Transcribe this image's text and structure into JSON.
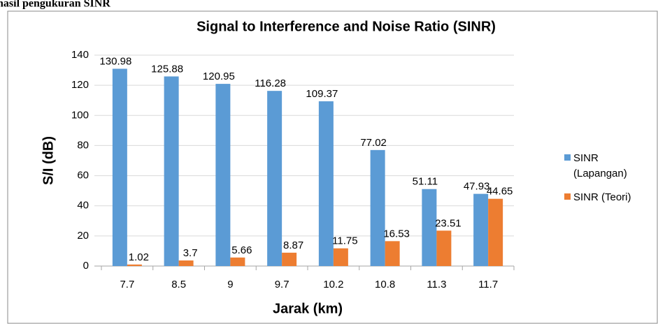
{
  "caption": "hasil pengukuran SINR",
  "chart_data": {
    "type": "bar",
    "title": "Signal to Interference and Noise Ratio (SINR)",
    "x_label": "Jarak (km)",
    "y_label": "S/I  (dB)",
    "categories": [
      "7.7",
      "8.5",
      "9",
      "9.7",
      "10.2",
      "10.8",
      "11.3",
      "11.7"
    ],
    "series": [
      {
        "name": "SINR (Lapangan)",
        "color": "#5b9bd5",
        "values": [
          130.98,
          125.88,
          120.95,
          116.28,
          109.37,
          77.02,
          51.11,
          47.93
        ]
      },
      {
        "name": "SINR (Teori)",
        "color": "#ed7d31",
        "values": [
          1.02,
          3.7,
          5.66,
          8.87,
          11.75,
          16.53,
          23.51,
          44.65
        ]
      }
    ],
    "ylim": [
      0,
      140
    ],
    "yticks": [
      0,
      20,
      40,
      60,
      80,
      100,
      120,
      140
    ],
    "grid": true,
    "legend": "right"
  }
}
